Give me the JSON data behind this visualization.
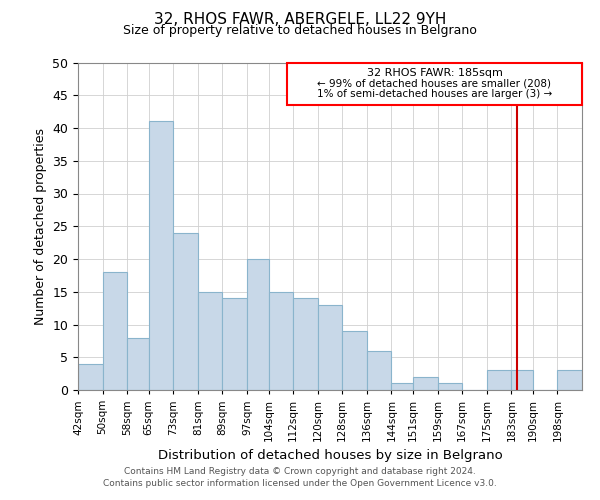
{
  "title": "32, RHOS FAWR, ABERGELE, LL22 9YH",
  "subtitle": "Size of property relative to detached houses in Belgrano",
  "xlabel": "Distribution of detached houses by size in Belgrano",
  "ylabel": "Number of detached properties",
  "bar_labels": [
    "42sqm",
    "50sqm",
    "58sqm",
    "65sqm",
    "73sqm",
    "81sqm",
    "89sqm",
    "97sqm",
    "104sqm",
    "112sqm",
    "120sqm",
    "128sqm",
    "136sqm",
    "144sqm",
    "151sqm",
    "159sqm",
    "167sqm",
    "175sqm",
    "183sqm",
    "190sqm",
    "198sqm"
  ],
  "bar_values": [
    4,
    18,
    8,
    41,
    24,
    15,
    14,
    20,
    15,
    14,
    13,
    9,
    6,
    1,
    2,
    1,
    0,
    3,
    3,
    0,
    3
  ],
  "bar_color": "#c8d8e8",
  "bar_edge_color": "#8ab4cc",
  "ylim": [
    0,
    50
  ],
  "yticks": [
    0,
    5,
    10,
    15,
    20,
    25,
    30,
    35,
    40,
    45,
    50
  ],
  "property_line_color": "#cc0000",
  "legend_title": "32 RHOS FAWR: 185sqm",
  "legend_line1": "← 99% of detached houses are smaller (208)",
  "legend_line2": "1% of semi-detached houses are larger (3) →",
  "footer_line1": "Contains HM Land Registry data © Crown copyright and database right 2024.",
  "footer_line2": "Contains public sector information licensed under the Open Government Licence v3.0.",
  "bin_edges": [
    42,
    50,
    58,
    65,
    73,
    81,
    89,
    97,
    104,
    112,
    120,
    128,
    136,
    144,
    151,
    159,
    167,
    175,
    183,
    190,
    198,
    206
  ]
}
